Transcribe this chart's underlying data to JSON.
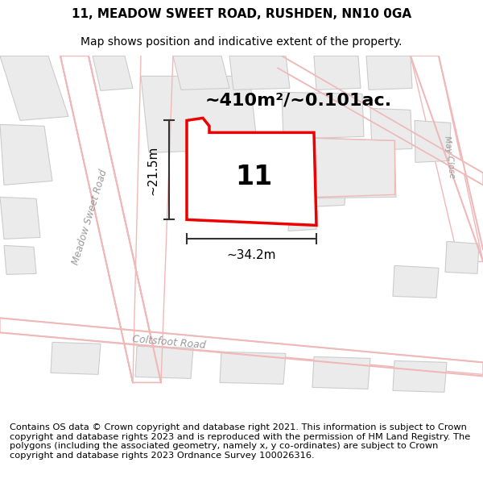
{
  "title": "11, MEADOW SWEET ROAD, RUSHDEN, NN10 0GA",
  "subtitle": "Map shows position and indicative extent of the property.",
  "footer": "Contains OS data © Crown copyright and database right 2021. This information is subject to Crown copyright and database rights 2023 and is reproduced with the permission of HM Land Registry. The polygons (including the associated geometry, namely x, y co-ordinates) are subject to Crown copyright and database rights 2023 Ordnance Survey 100026316.",
  "area_label": "~410m²/~0.101ac.",
  "plot_number": "11",
  "width_label": "~34.2m",
  "height_label": "~21.5m",
  "map_bg": "#ffffff",
  "road_line_color": "#f0b8b8",
  "road_fill_color": "#ffffff",
  "building_fill": "#ebebeb",
  "building_edge": "#cccccc",
  "plot_fill": "#ffffff",
  "plot_edge": "#ee0000",
  "dim_color": "#333333",
  "label_color": "#999999",
  "title_fontsize": 11,
  "subtitle_fontsize": 10,
  "footer_fontsize": 8.2,
  "area_fontsize": 16,
  "number_fontsize": 24,
  "dim_fontsize": 11
}
